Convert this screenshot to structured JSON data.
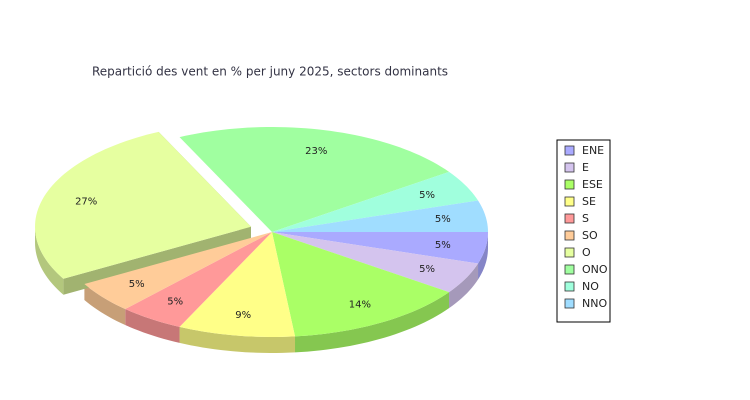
{
  "chart_data": {
    "type": "pie",
    "title": "Repartició des vent en % per juny 2025, sectors dominants",
    "categories": [
      "ENE",
      "E",
      "ESE",
      "SE",
      "S",
      "SO",
      "O",
      "ONO",
      "NO",
      "NNO"
    ],
    "values": [
      5,
      5,
      14,
      9,
      5,
      5,
      27,
      23,
      5,
      5
    ],
    "value_labels": [
      "5%",
      "5%",
      "14%",
      "9%",
      "5%",
      "5%",
      "27%",
      "23%",
      "5%",
      "5%"
    ],
    "colors": [
      "#aaaaff",
      "#d4c4ee",
      "#aaff66",
      "#ffff88",
      "#ff9999",
      "#ffcc99",
      "#e6ffa0",
      "#a0ffa0",
      "#a0ffdd",
      "#a0ddff"
    ],
    "exploded": [
      "O"
    ],
    "legend": "right"
  }
}
